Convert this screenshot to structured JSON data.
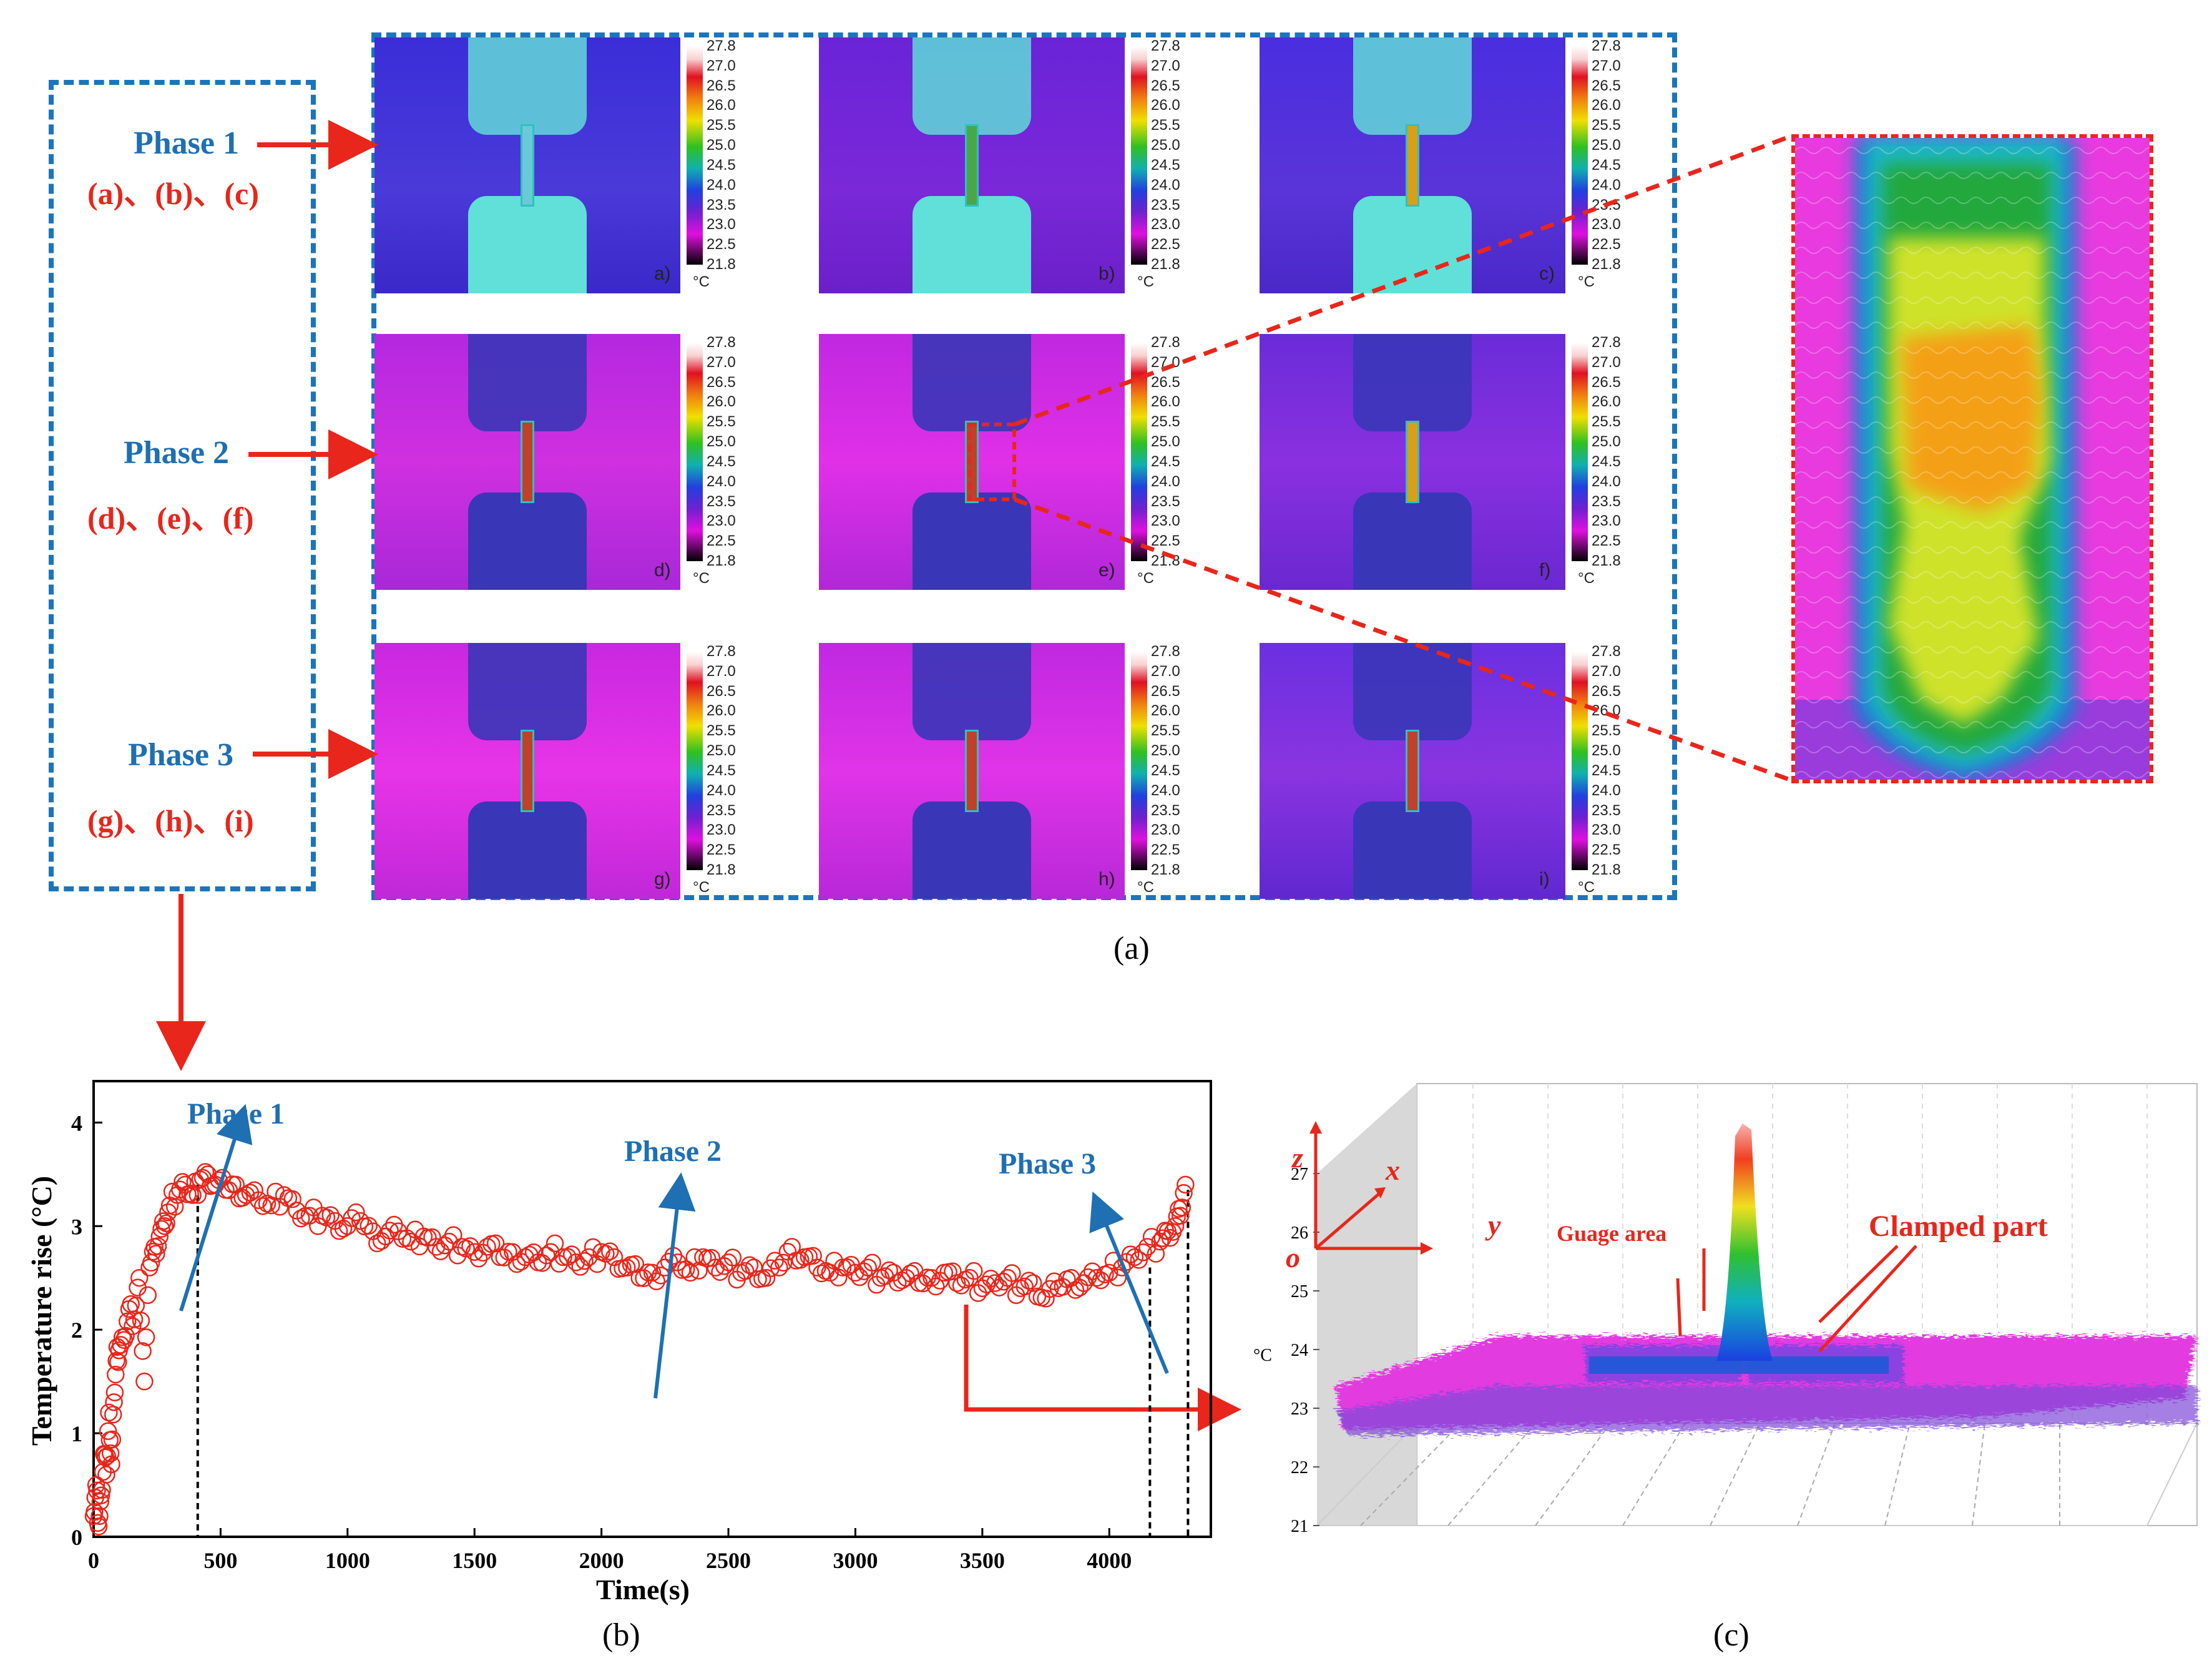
{
  "phases": [
    {
      "title": "Phase 1",
      "panels": "(a)、(b)、(c)"
    },
    {
      "title": "Phase 2",
      "panels": "(d)、(e)、(f)"
    },
    {
      "title": "Phase 3",
      "panels": "(g)、(h)、(i)"
    }
  ],
  "thermal_images": {
    "sub_labels": [
      "a)",
      "b)",
      "c)",
      "d)",
      "e)",
      "f)",
      "g)",
      "h)",
      "i)"
    ],
    "colorbar_ticks": [
      "27.8",
      "27.0",
      "26.5",
      "26.0",
      "25.5",
      "25.0",
      "24.5",
      "24.0",
      "23.5",
      "23.0",
      "22.5",
      "21.8"
    ],
    "colorbar_unit": "°C"
  },
  "figure_labels": {
    "a": "(a)",
    "b": "(b)",
    "c": "(c)"
  },
  "chart_data": [
    {
      "type": "scatter",
      "title": "",
      "xlabel": "Time(s)",
      "ylabel": "Temperature rise (°C)",
      "xlim": [
        0,
        4400
      ],
      "ylim": [
        0,
        4.4
      ],
      "xticks": [
        0,
        500,
        1000,
        1500,
        2000,
        2500,
        3000,
        3500,
        4000
      ],
      "yticks": [
        0,
        1,
        2,
        3,
        4
      ],
      "phase_markers_x": [
        410,
        4160,
        4310
      ],
      "annotations": [
        "Phase 1",
        "Phase 2",
        "Phase 3"
      ],
      "series": [
        {
          "name": "Temperature rise",
          "x": [
            0,
            10,
            20,
            30,
            40,
            50,
            60,
            70,
            80,
            90,
            100,
            120,
            140,
            160,
            180,
            200,
            220,
            240,
            260,
            280,
            300,
            330,
            360,
            390,
            420,
            450,
            480,
            520,
            560,
            600,
            650,
            700,
            750,
            800,
            850,
            900,
            950,
            1000,
            1050,
            1100,
            1150,
            1200,
            1250,
            1300,
            1350,
            1400,
            1450,
            1500,
            1550,
            1600,
            1650,
            1700,
            1750,
            1800,
            1850,
            1900,
            1950,
            2000,
            2050,
            2100,
            2150,
            2200,
            2250,
            2300,
            2350,
            2400,
            2450,
            2500,
            2550,
            2600,
            2650,
            2700,
            2750,
            2800,
            2850,
            2900,
            2950,
            3000,
            3050,
            3100,
            3150,
            3200,
            3250,
            3300,
            3350,
            3400,
            3450,
            3500,
            3550,
            3600,
            3650,
            3700,
            3750,
            3800,
            3850,
            3900,
            3950,
            4000,
            4050,
            4100,
            4150,
            4200,
            4230,
            4260,
            4280,
            4300
          ],
          "y": [
            0.2,
            0.5,
            0.1,
            0.4,
            0.8,
            0.6,
            1.2,
            0.7,
            1.3,
            1.7,
            1.8,
            1.9,
            2.2,
            2.1,
            2.5,
            1.5,
            2.6,
            2.8,
            2.9,
            3.0,
            3.2,
            3.3,
            3.4,
            3.3,
            3.45,
            3.5,
            3.4,
            3.35,
            3.4,
            3.3,
            3.25,
            3.2,
            3.3,
            3.15,
            3.1,
            3.1,
            3.05,
            3.0,
            3.05,
            2.95,
            2.9,
            2.95,
            2.85,
            2.9,
            2.8,
            2.85,
            2.8,
            2.75,
            2.8,
            2.7,
            2.75,
            2.7,
            2.65,
            2.75,
            2.7,
            2.65,
            2.7,
            2.75,
            2.7,
            2.6,
            2.5,
            2.55,
            2.6,
            2.65,
            2.55,
            2.7,
            2.6,
            2.65,
            2.55,
            2.6,
            2.5,
            2.6,
            2.8,
            2.7,
            2.6,
            2.55,
            2.6,
            2.55,
            2.6,
            2.5,
            2.55,
            2.5,
            2.45,
            2.5,
            2.55,
            2.45,
            2.5,
            2.4,
            2.45,
            2.5,
            2.4,
            2.45,
            2.3,
            2.4,
            2.5,
            2.45,
            2.5,
            2.55,
            2.6,
            2.7,
            2.8,
            2.85,
            2.95,
            3.0,
            3.1,
            3.4
          ]
        }
      ]
    },
    {
      "type": "surface3d",
      "zlabel": "°C",
      "zticks": [
        21,
        22,
        23,
        24,
        25,
        26,
        27
      ],
      "axis_letters": [
        "z",
        "x",
        "y",
        "o"
      ],
      "annotations": [
        "Guage area",
        "Clamped part"
      ]
    }
  ]
}
